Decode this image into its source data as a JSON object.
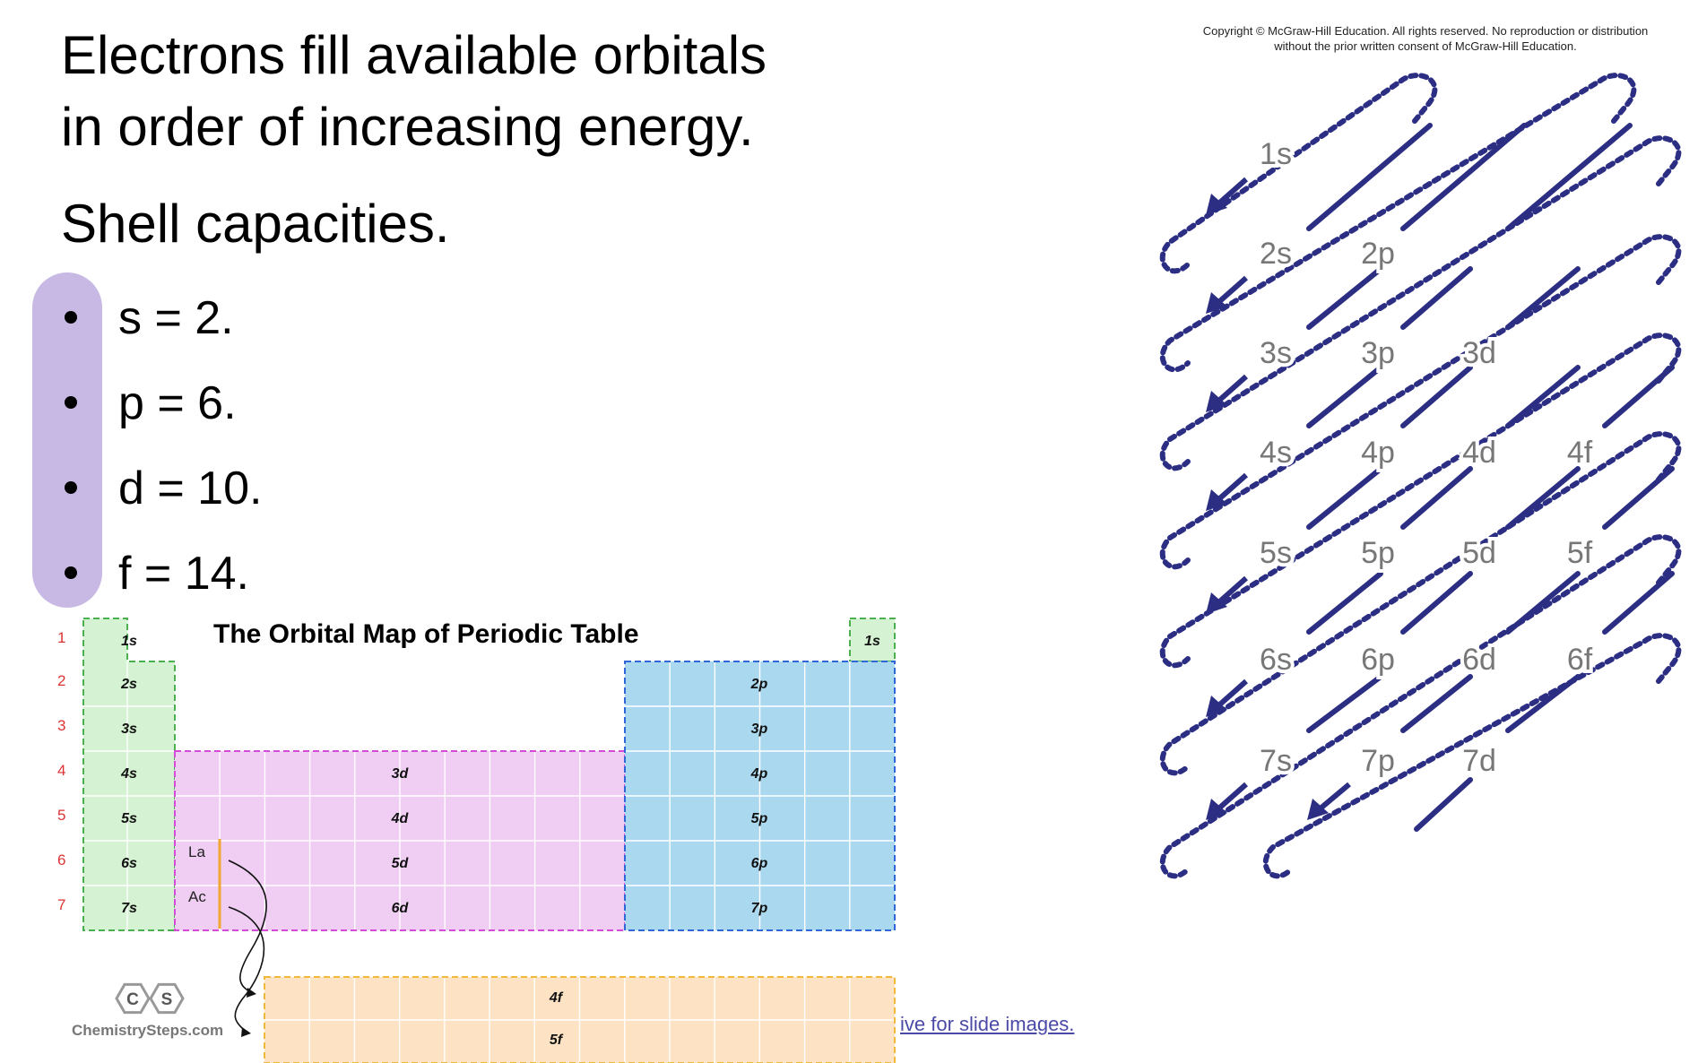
{
  "slide": {
    "heading_line1": "Electrons fill available orbitals",
    "heading_line2": "in order of increasing energy.",
    "subheading": "Shell capacities.",
    "bullets": [
      "s = 2.",
      "p = 6.",
      "d = 10.",
      "f = 14."
    ],
    "link_text": "ive for slide images."
  },
  "periodic_table": {
    "title": "The Orbital Map of Periodic Table",
    "period_numbers": [
      "1",
      "2",
      "3",
      "4",
      "5",
      "6",
      "7"
    ],
    "s_block": [
      "1s",
      "2s",
      "3s",
      "4s",
      "5s",
      "6s",
      "7s"
    ],
    "he_label": "1s",
    "d_block": [
      "3d",
      "4d",
      "5d",
      "6d"
    ],
    "p_block": [
      "2p",
      "3p",
      "4p",
      "5p",
      "6p",
      "7p"
    ],
    "f_block": [
      "4f",
      "5f"
    ],
    "lanthanide_label": "La",
    "actinide_label": "Ac",
    "logo_letters": [
      "C",
      "S"
    ],
    "brand": "ChemistrySteps.com",
    "colors": {
      "s": "#d5f2d2",
      "s_border": "#4caf50",
      "d": "#f0cdf2",
      "d_border": "#d44bd8",
      "p": "#aad8ef",
      "p_border": "#2f66d8",
      "f": "#fde3c4",
      "f_border": "#f0b93a",
      "period_number": "#d33"
    }
  },
  "aufbau": {
    "copyright": "Copyright © McGraw-Hill Education. All rights reserved. No reproduction or distribution without the prior written consent of McGraw-Hill Education.",
    "rows": [
      [
        "1s"
      ],
      [
        "2s",
        "2p"
      ],
      [
        "3s",
        "3p",
        "3d"
      ],
      [
        "4s",
        "4p",
        "4d",
        "4f"
      ],
      [
        "5s",
        "5p",
        "5d",
        "5f"
      ],
      [
        "6s",
        "6p",
        "6d",
        "6f"
      ],
      [
        "7s",
        "7p",
        "7d"
      ]
    ],
    "color": "#2b2e83"
  }
}
